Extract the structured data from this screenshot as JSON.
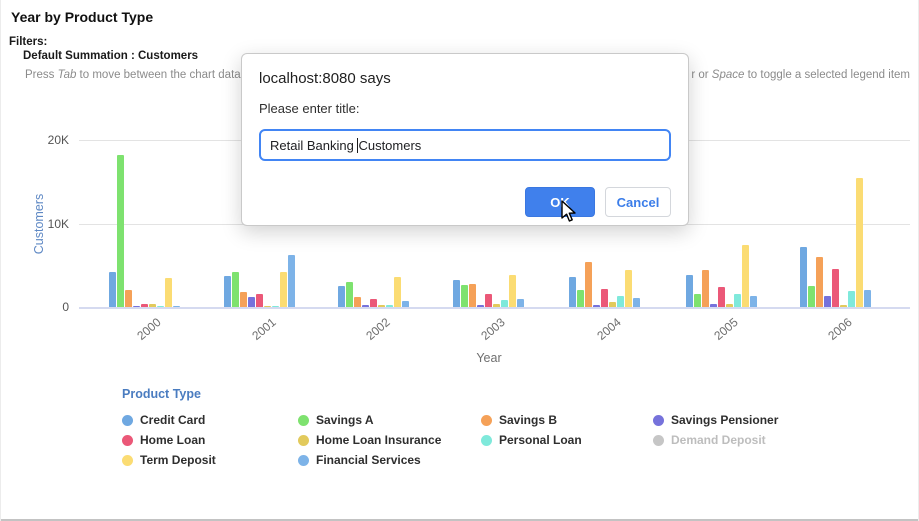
{
  "header": {
    "title": "Year by Product Type",
    "filters_label": "Filters:",
    "filter_value": "Default Summation : Customers",
    "instructions": {
      "left_pre": "Press ",
      "left_key": "Tab",
      "left_post": " to move between the chart data, le",
      "right_pre": "r or ",
      "right_key": "Space",
      "right_post": " to toggle a selected legend item"
    }
  },
  "chart_data": {
    "type": "bar",
    "title": "Year by Product Type",
    "xlabel": "Year",
    "ylabel": "Customers",
    "categories": [
      "2000",
      "2001",
      "2002",
      "2003",
      "2004",
      "2005",
      "2006"
    ],
    "y_ticks": [
      "0",
      "10K",
      "20K"
    ],
    "ylim": [
      0,
      23000
    ],
    "grid": true,
    "legend_position": "bottom",
    "legend_title": "Product Type",
    "series": [
      {
        "name": "Credit Card",
        "color": "#6FA8E1",
        "values": [
          4200,
          3700,
          2500,
          3200,
          3600,
          3800,
          7200
        ]
      },
      {
        "name": "Savings A",
        "color": "#7EE26F",
        "values": [
          18100,
          4200,
          3000,
          2600,
          2000,
          1600,
          2500
        ]
      },
      {
        "name": "Savings B",
        "color": "#F5A158",
        "values": [
          2000,
          1800,
          1200,
          2700,
          5400,
          4400,
          6000
        ]
      },
      {
        "name": "Savings Pensioner",
        "color": "#7672DB",
        "values": [
          100,
          1200,
          250,
          200,
          200,
          350,
          1300
        ]
      },
      {
        "name": "Home Loan",
        "color": "#EB5878",
        "values": [
          400,
          1500,
          1000,
          1500,
          2200,
          2400,
          4500
        ]
      },
      {
        "name": "Home Loan Insurance",
        "color": "#E2CA5C",
        "values": [
          300,
          150,
          200,
          300,
          600,
          300,
          200
        ]
      },
      {
        "name": "Personal Loan",
        "color": "#7FE9DB",
        "values": [
          100,
          100,
          200,
          850,
          1300,
          1600,
          1900
        ]
      },
      {
        "name": "Demand Deposit",
        "color": "#C6C6C6",
        "disabled": true,
        "values": [
          0,
          0,
          0,
          0,
          0,
          0,
          0
        ]
      },
      {
        "name": "Term Deposit",
        "color": "#FBDC73",
        "values": [
          3500,
          4200,
          3600,
          3800,
          4400,
          7400,
          15300
        ]
      },
      {
        "name": "Financial Services",
        "color": "#7DB3E8",
        "values": [
          100,
          6200,
          700,
          1000,
          1100,
          1300,
          2000
        ]
      }
    ]
  },
  "dialog": {
    "title": "localhost:8080 says",
    "message": "Please enter title:",
    "input": {
      "value": "Retail Banking Customers",
      "value_before_caret": "Retail Banking ",
      "value_after_caret": "Customers"
    },
    "ok_label": "OK",
    "cancel_label": "Cancel"
  }
}
